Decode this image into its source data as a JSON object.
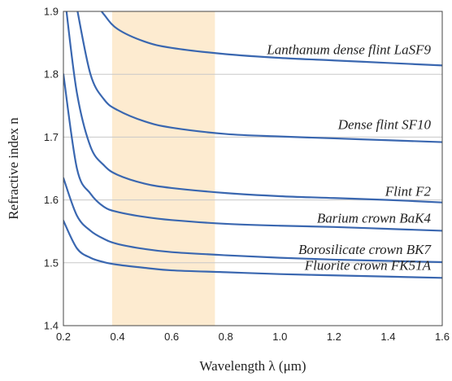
{
  "chart_data": {
    "type": "line",
    "xlabel": "Wavelength λ (μm)",
    "ylabel": "Refractive index n",
    "xlim": [
      0.2,
      1.6
    ],
    "ylim": [
      1.4,
      1.9
    ],
    "x_ticks": [
      "0.2",
      "0.4",
      "0.6",
      "0.8",
      "1.0",
      "1.2",
      "1.4",
      "1.6"
    ],
    "y_ticks": [
      "1.4",
      "1.5",
      "1.6",
      "1.7",
      "1.8",
      "1.9"
    ],
    "grid": "horizontal",
    "highlight_band": {
      "x_range": [
        0.38,
        0.76
      ],
      "color": "#fdebd0"
    },
    "line_color": "#3a67b0",
    "series": [
      {
        "name": "Lanthanum dense flint LaSF9",
        "x": [
          0.3,
          0.35,
          0.4,
          0.5,
          0.6,
          0.8,
          1.0,
          1.2,
          1.4,
          1.6
        ],
        "values": [
          1.925,
          1.895,
          1.872,
          1.852,
          1.842,
          1.832,
          1.826,
          1.822,
          1.818,
          1.814
        ]
      },
      {
        "name": "Dense flint SF10",
        "x": [
          0.25,
          0.3,
          0.35,
          0.4,
          0.5,
          0.6,
          0.8,
          1.0,
          1.2,
          1.4,
          1.6
        ],
        "values": [
          1.905,
          1.8,
          1.76,
          1.743,
          1.725,
          1.715,
          1.705,
          1.701,
          1.698,
          1.695,
          1.692
        ]
      },
      {
        "name": "Flint F2",
        "x": [
          0.21,
          0.25,
          0.3,
          0.35,
          0.4,
          0.5,
          0.6,
          0.8,
          1.0,
          1.2,
          1.4,
          1.6
        ],
        "values": [
          1.905,
          1.77,
          1.685,
          1.655,
          1.64,
          1.626,
          1.619,
          1.611,
          1.606,
          1.603,
          1.6,
          1.596
        ]
      },
      {
        "name": "Barium crown BaK4",
        "x": [
          0.2,
          0.25,
          0.3,
          0.35,
          0.4,
          0.5,
          0.6,
          0.8,
          1.0,
          1.2,
          1.4,
          1.6
        ],
        "values": [
          1.8,
          1.65,
          1.61,
          1.589,
          1.581,
          1.573,
          1.568,
          1.562,
          1.559,
          1.557,
          1.554,
          1.551
        ]
      },
      {
        "name": "Borosilicate crown BK7",
        "x": [
          0.2,
          0.25,
          0.3,
          0.35,
          0.4,
          0.5,
          0.6,
          0.8,
          1.0,
          1.2,
          1.4,
          1.6
        ],
        "values": [
          1.635,
          1.575,
          1.551,
          1.538,
          1.53,
          1.522,
          1.517,
          1.512,
          1.508,
          1.505,
          1.503,
          1.501
        ]
      },
      {
        "name": "Fluorite crown FK51A",
        "x": [
          0.2,
          0.25,
          0.3,
          0.35,
          0.4,
          0.5,
          0.6,
          0.8,
          1.0,
          1.2,
          1.4,
          1.6
        ],
        "values": [
          1.567,
          1.523,
          1.508,
          1.501,
          1.497,
          1.492,
          1.488,
          1.485,
          1.482,
          1.48,
          1.478,
          1.476
        ]
      }
    ]
  }
}
